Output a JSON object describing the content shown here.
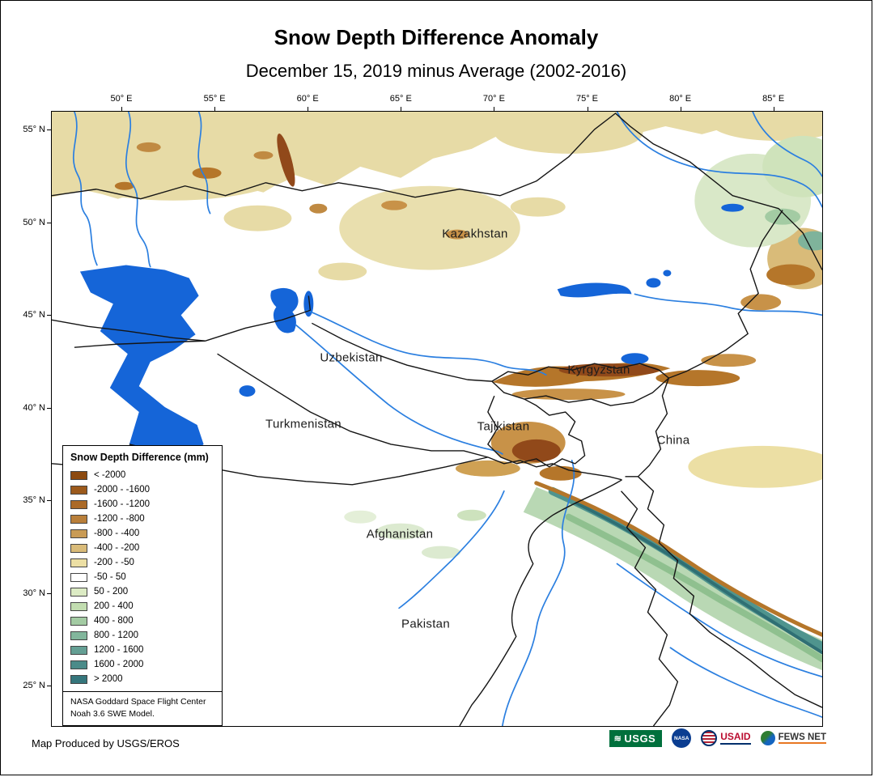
{
  "header": {
    "title": "Snow Depth Difference Anomaly",
    "subtitle": "December 15, 2019 minus Average (2002-2016)"
  },
  "axes": {
    "lon_ticks": [
      "50° E",
      "55° E",
      "60° E",
      "65° E",
      "70° E",
      "75° E",
      "80° E",
      "85° E"
    ],
    "lat_ticks": [
      "55° N",
      "50° N",
      "45° N",
      "40° N",
      "35° N",
      "30° N",
      "25° N"
    ]
  },
  "map": {
    "country_labels": [
      "Kazakhstan",
      "Uzbekistan",
      "Kyrgyzstan",
      "Turkmenistan",
      "Tajikistan",
      "China",
      "Afghanistan",
      "Pakistan"
    ],
    "water_color": "#1565d8",
    "border_color": "#151515"
  },
  "legend": {
    "title": "Snow Depth Difference (mm)",
    "entries": [
      {
        "label": "< -2000",
        "color": "#8c4a10"
      },
      {
        "label": "-2000 - -1600",
        "color": "#9c5a1c"
      },
      {
        "label": "-1600 - -1200",
        "color": "#ab6a28"
      },
      {
        "label": "-1200 - -800",
        "color": "#b97f3a"
      },
      {
        "label": "-800 - -400",
        "color": "#c99b55"
      },
      {
        "label": "-400 - -200",
        "color": "#d9bb79"
      },
      {
        "label": "-200 - -50",
        "color": "#ecdfa4"
      },
      {
        "label": "-50 - 50",
        "color": "#ffffff"
      },
      {
        "label": "50 - 200",
        "color": "#dcebc4"
      },
      {
        "label": "200 - 400",
        "color": "#c2ddb0"
      },
      {
        "label": "400 - 800",
        "color": "#a3cba3"
      },
      {
        "label": "800 - 1200",
        "color": "#82b69c"
      },
      {
        "label": "1200 - 1600",
        "color": "#649f94"
      },
      {
        "label": "1600 - 2000",
        "color": "#4b8b89"
      },
      {
        "label": "> 2000",
        "color": "#35767c"
      }
    ],
    "note_line1": "NASA Goddard Space Flight Center",
    "note_line2": "Noah 3.6 SWE Model."
  },
  "footer": {
    "credit": "Map Produced by USGS/EROS"
  },
  "logos": {
    "usgs": "USGS",
    "nasa": "NASA",
    "usaid": "USAID",
    "fews": "FEWS NET"
  }
}
